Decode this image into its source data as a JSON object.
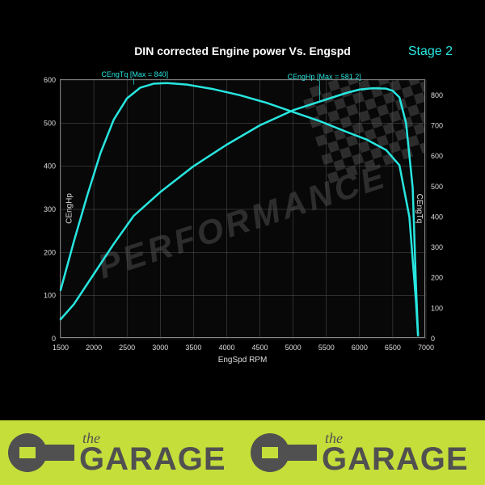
{
  "title": "DIN corrected Engine power Vs. Engspd",
  "stage_label": "Stage 2",
  "x_axis": {
    "label": "EngSpd RPM",
    "min": 1500,
    "max": 7000,
    "step": 500,
    "ticks": [
      1500,
      2000,
      2500,
      3000,
      3500,
      4000,
      4500,
      5000,
      5500,
      6000,
      6500,
      7000
    ]
  },
  "y_left": {
    "label": "CEngHp",
    "min": 0,
    "max": 600,
    "step": 100,
    "ticks": [
      0,
      100,
      200,
      300,
      400,
      500,
      600
    ]
  },
  "y_right": {
    "label": "CEngTq",
    "min": 0,
    "max": 850,
    "step": 100,
    "ticks": [
      0,
      100,
      200,
      300,
      400,
      500,
      600,
      700,
      800
    ]
  },
  "colors": {
    "bg": "#000000",
    "grid": "#555555",
    "text": "#dddddd",
    "series": "#27e6e0",
    "stage": "#27e6e0",
    "logo_bg": "#c5de3a",
    "logo_fg": "#505050"
  },
  "series_hp": {
    "label": "CEngHp [Max = 581.2]",
    "label_x": 5400,
    "label_y_hp": 595,
    "axis": "left",
    "line_width": 2.5,
    "points": [
      [
        1500,
        45
      ],
      [
        1700,
        80
      ],
      [
        2000,
        150
      ],
      [
        2300,
        220
      ],
      [
        2600,
        285
      ],
      [
        3000,
        340
      ],
      [
        3500,
        400
      ],
      [
        4000,
        450
      ],
      [
        4500,
        495
      ],
      [
        5000,
        530
      ],
      [
        5500,
        555
      ],
      [
        5800,
        570
      ],
      [
        6000,
        578
      ],
      [
        6200,
        581
      ],
      [
        6400,
        580
      ],
      [
        6500,
        575
      ],
      [
        6600,
        560
      ],
      [
        6700,
        500
      ],
      [
        6800,
        350
      ],
      [
        6850,
        120
      ],
      [
        6880,
        10
      ]
    ]
  },
  "series_tq": {
    "label": "CEngTq [Max = 840]",
    "label_x": 2600,
    "label_y_tq": 850,
    "axis": "right",
    "line_width": 2.5,
    "points": [
      [
        1500,
        160
      ],
      [
        1700,
        320
      ],
      [
        1900,
        470
      ],
      [
        2100,
        610
      ],
      [
        2300,
        720
      ],
      [
        2500,
        790
      ],
      [
        2700,
        825
      ],
      [
        2900,
        838
      ],
      [
        3100,
        840
      ],
      [
        3400,
        835
      ],
      [
        3800,
        820
      ],
      [
        4200,
        800
      ],
      [
        4600,
        775
      ],
      [
        5000,
        745
      ],
      [
        5400,
        715
      ],
      [
        5800,
        680
      ],
      [
        6100,
        655
      ],
      [
        6400,
        620
      ],
      [
        6600,
        570
      ],
      [
        6750,
        400
      ],
      [
        6850,
        120
      ],
      [
        6880,
        10
      ]
    ]
  },
  "watermark": {
    "text": "PERFORMANCE"
  },
  "logo": {
    "the": "the",
    "garage": "GARAGE"
  }
}
